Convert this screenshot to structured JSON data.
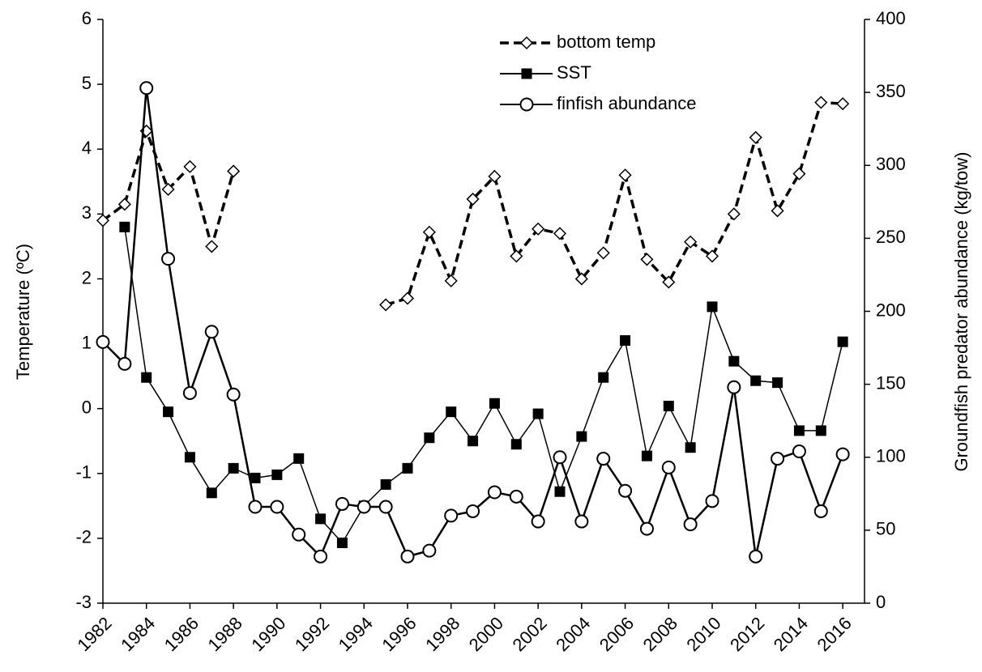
{
  "chart_data": {
    "type": "line",
    "x": [
      1982,
      1983,
      1984,
      1985,
      1986,
      1987,
      1988,
      1989,
      1990,
      1991,
      1992,
      1993,
      1994,
      1995,
      1996,
      1997,
      1998,
      1999,
      2000,
      2001,
      2002,
      2003,
      2004,
      2005,
      2006,
      2007,
      2008,
      2009,
      2010,
      2011,
      2012,
      2013,
      2014,
      2015,
      2016
    ],
    "xlim": [
      1982,
      2017
    ],
    "xticks": [
      1982,
      1984,
      1986,
      1988,
      1990,
      1992,
      1994,
      1996,
      1998,
      2000,
      2002,
      2004,
      2006,
      2008,
      2010,
      2012,
      2014,
      2016
    ],
    "ylim": [
      -3,
      6
    ],
    "yticks": [
      -3,
      -2,
      -1,
      0,
      1,
      2,
      3,
      4,
      5,
      6
    ],
    "y2lim": [
      0,
      400
    ],
    "y2ticks": [
      0,
      50,
      100,
      150,
      200,
      250,
      300,
      350,
      400
    ],
    "ylabel": "Temperature (ºC)",
    "y2label": "Groundfish predator abundance (kg/tow)",
    "legend": "upper center",
    "series": [
      {
        "name": "bottom temp",
        "color": "#000000",
        "style": "dashed",
        "marker": "diamond",
        "values": [
          2.9,
          3.15,
          4.28,
          3.38,
          3.73,
          2.5,
          3.66,
          null,
          null,
          null,
          null,
          null,
          null,
          1.6,
          1.7,
          2.72,
          1.97,
          3.23,
          3.58,
          2.35,
          2.77,
          2.7,
          2.0,
          2.4,
          3.6,
          2.3,
          1.95,
          2.57,
          2.35,
          3.0,
          4.18,
          3.05,
          3.62,
          4.72,
          4.7
        ]
      },
      {
        "name": "SST",
        "color": "#000000",
        "style": "solid",
        "marker": "square",
        "values": [
          null,
          2.8,
          0.48,
          -0.05,
          -0.75,
          -1.3,
          -0.92,
          -1.07,
          -1.02,
          -0.77,
          -1.7,
          -2.07,
          -1.5,
          -1.17,
          -0.92,
          -0.45,
          -0.05,
          -0.5,
          0.08,
          -0.55,
          -0.08,
          -1.28,
          -0.43,
          0.48,
          1.05,
          -0.73,
          0.04,
          -0.6,
          1.57,
          0.73,
          0.43,
          0.4,
          -0.34,
          -0.34,
          1.03
        ]
      },
      {
        "name": "finfish abundance",
        "color": "#000000",
        "style": "solid",
        "marker": "circle",
        "axis": "y2",
        "values": [
          179,
          164,
          353,
          236,
          144,
          186,
          143,
          66,
          66,
          47,
          32,
          68,
          66,
          66,
          32,
          36,
          60,
          63,
          76,
          73,
          56,
          100,
          56,
          99,
          77,
          51,
          93,
          54,
          70,
          148,
          32,
          99,
          104,
          63,
          102
        ]
      }
    ]
  }
}
